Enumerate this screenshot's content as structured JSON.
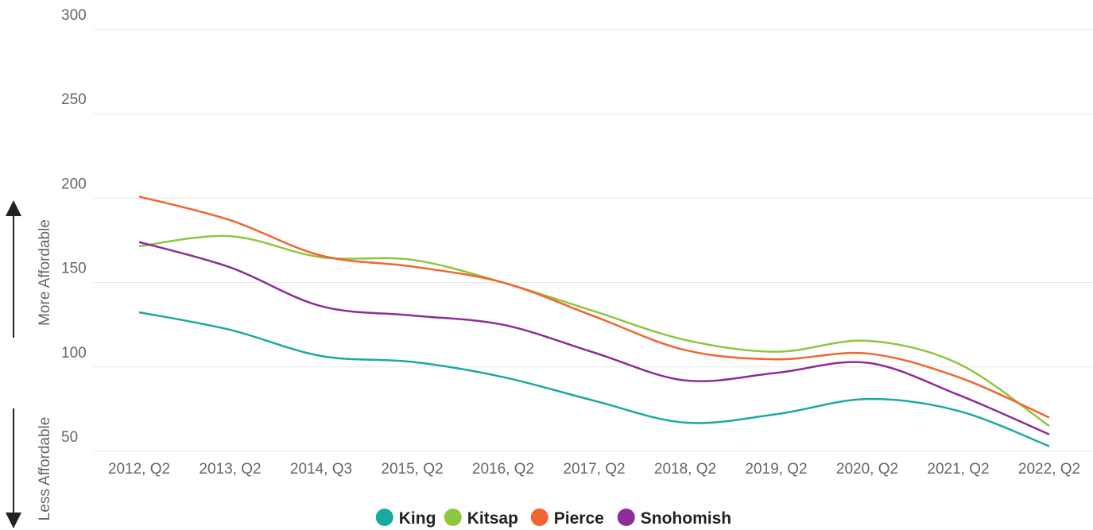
{
  "chart_data": {
    "type": "line",
    "categories": [
      "2012, Q2",
      "2013, Q2",
      "2014, Q3",
      "2015, Q2",
      "2016, Q2",
      "2017, Q2",
      "2018, Q2",
      "2019, Q2",
      "2020, Q2",
      "2021, Q2",
      "2022, Q2"
    ],
    "series": [
      {
        "name": "King",
        "color": "#1aa9a0",
        "values": [
          132.4,
          122,
          106.5,
          103,
          94,
          80,
          67,
          72,
          81,
          74,
          53
        ]
      },
      {
        "name": "Kitsap",
        "color": "#8dc63f",
        "values": [
          171.5,
          177.5,
          165,
          163.5,
          150,
          133,
          116,
          109,
          115.5,
          102,
          65
        ]
      },
      {
        "name": "Pierce",
        "color": "#f26430",
        "values": [
          201,
          187,
          166,
          159.5,
          150,
          130,
          110,
          104.5,
          108,
          94,
          70
        ]
      },
      {
        "name": "Snohomish",
        "color": "#8e2c98",
        "values": [
          174,
          159,
          136,
          130.5,
          125,
          108.5,
          92,
          96.5,
          102.5,
          83.5,
          60
        ]
      }
    ],
    "ylim": [
      50,
      300
    ],
    "yticks": [
      50,
      100,
      150,
      200,
      250,
      300
    ],
    "grid": true,
    "legend": "bottom",
    "annotations": [
      "More Affordable",
      "Less Affordable"
    ]
  }
}
